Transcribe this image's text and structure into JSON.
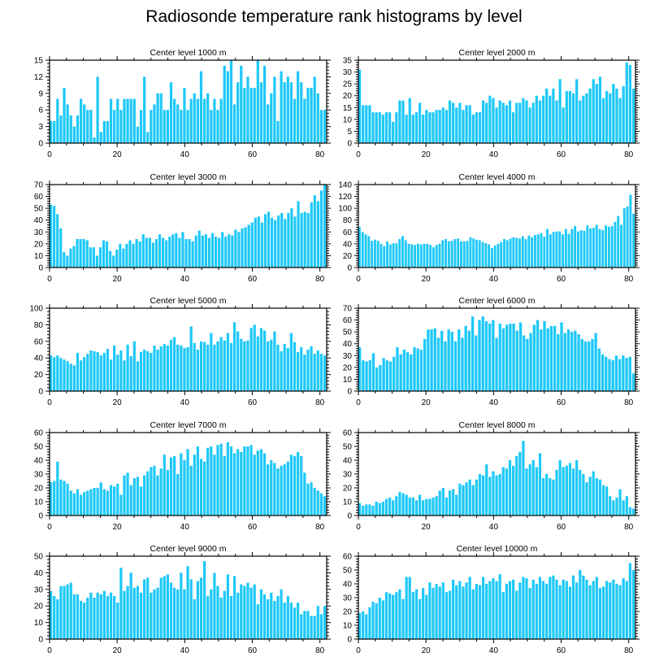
{
  "figure_title": "Radiosonde temperature rank histograms by level",
  "colors": {
    "bar": "#1ec8f8",
    "axis": "#000000"
  },
  "chart_data": [
    {
      "type": "bar",
      "title": "Center level 1000 m",
      "xlabel": "",
      "ylabel": "",
      "xlim": [
        0,
        82
      ],
      "ylim": [
        0,
        15
      ],
      "xticks": [
        0,
        20,
        40,
        60,
        80
      ],
      "yticks": [
        0,
        3,
        6,
        9,
        12,
        15
      ],
      "values": [
        4,
        4,
        8,
        5,
        10,
        7,
        5,
        3,
        5,
        8,
        7,
        6,
        6,
        1,
        12,
        2,
        4,
        4,
        8,
        6,
        8,
        6,
        8,
        8,
        8,
        8,
        3,
        6,
        12,
        2,
        6,
        7,
        9,
        9,
        6,
        6,
        11,
        8,
        7,
        6,
        10,
        6,
        8,
        9,
        8,
        13,
        8,
        9,
        6,
        8,
        6,
        8,
        14,
        13,
        15,
        7,
        11,
        14,
        10,
        12,
        10,
        10,
        15,
        11,
        14,
        7,
        9,
        12,
        4,
        13,
        11,
        12,
        11,
        8,
        13,
        11,
        8,
        10,
        10,
        12,
        9,
        6,
        6
      ],
      "ticks_right": true
    },
    {
      "type": "bar",
      "title": "Center level 2000 m",
      "xlabel": "",
      "ylabel": "",
      "xlim": [
        0,
        82
      ],
      "ylim": [
        0,
        35
      ],
      "xticks": [
        0,
        20,
        40,
        60,
        80
      ],
      "yticks": [
        0,
        5,
        10,
        15,
        20,
        25,
        30,
        35
      ],
      "values": [
        31,
        16,
        16,
        16,
        13,
        13,
        13,
        12,
        13,
        13,
        9,
        13,
        18,
        18,
        12,
        19,
        12,
        13,
        17,
        12,
        14,
        13,
        13,
        14,
        14,
        15,
        14,
        18,
        17,
        15,
        17,
        14,
        16,
        16,
        12,
        13,
        13,
        18,
        17,
        20,
        19,
        15,
        18,
        17,
        16,
        18,
        13,
        17,
        17,
        19,
        18,
        15,
        17,
        20,
        18,
        20,
        23,
        20,
        23,
        18,
        27,
        15,
        22,
        22,
        21,
        27,
        18,
        20,
        21,
        23,
        27,
        25,
        28,
        19,
        22,
        21,
        25,
        23,
        19,
        24,
        34,
        33,
        23
      ],
      "ticks_right": true
    },
    {
      "type": "bar",
      "title": "Center level 3000 m",
      "xlabel": "",
      "ylabel": "",
      "xlim": [
        0,
        82
      ],
      "ylim": [
        0,
        70
      ],
      "xticks": [
        0,
        20,
        40,
        60,
        80
      ],
      "yticks": [
        0,
        10,
        20,
        30,
        40,
        50,
        60,
        70
      ],
      "values": [
        53,
        52,
        45,
        33,
        13,
        10,
        16,
        18,
        24,
        24,
        24,
        23,
        17,
        17,
        10,
        17,
        23,
        22,
        14,
        10,
        15,
        20,
        16,
        20,
        23,
        20,
        24,
        22,
        28,
        25,
        25,
        21,
        24,
        28,
        25,
        23,
        26,
        28,
        29,
        25,
        30,
        24,
        24,
        22,
        27,
        31,
        27,
        28,
        25,
        29,
        26,
        25,
        30,
        26,
        28,
        27,
        32,
        30,
        33,
        34,
        36,
        38,
        42,
        43,
        38,
        45,
        47,
        42,
        40,
        44,
        46,
        41,
        46,
        50,
        43,
        56,
        46,
        47,
        46,
        55,
        61,
        56,
        65,
        70
      ],
      "ticks_right": true
    },
    {
      "type": "bar",
      "title": "Center level 4000 m",
      "xlabel": "",
      "ylabel": "",
      "xlim": [
        0,
        82
      ],
      "ylim": [
        0,
        140
      ],
      "xticks": [
        0,
        20,
        40,
        60,
        80
      ],
      "yticks": [
        0,
        20,
        40,
        60,
        80,
        100,
        120,
        140
      ],
      "values": [
        68,
        60,
        56,
        53,
        45,
        47,
        45,
        40,
        36,
        44,
        39,
        41,
        41,
        48,
        53,
        46,
        40,
        39,
        38,
        40,
        39,
        40,
        40,
        38,
        34,
        38,
        40,
        46,
        48,
        44,
        45,
        48,
        49,
        44,
        44,
        45,
        51,
        49,
        47,
        46,
        43,
        41,
        39,
        33,
        37,
        40,
        43,
        48,
        46,
        49,
        51,
        50,
        49,
        53,
        48,
        54,
        51,
        55,
        56,
        58,
        52,
        65,
        56,
        60,
        61,
        61,
        56,
        65,
        57,
        65,
        70,
        61,
        63,
        62,
        71,
        66,
        67,
        72,
        65,
        63,
        71,
        69,
        70,
        77,
        87,
        72,
        100,
        103,
        123,
        91
      ],
      "ticks_right": true
    },
    {
      "type": "bar",
      "title": "Center level 5000 m",
      "xlabel": "",
      "ylabel": "",
      "xlim": [
        0,
        82
      ],
      "ylim": [
        0,
        100
      ],
      "xticks": [
        0,
        20,
        40,
        60,
        80
      ],
      "yticks": [
        0,
        20,
        40,
        60,
        80,
        100
      ],
      "values": [
        43,
        41,
        43,
        40,
        38,
        36,
        33,
        31,
        46,
        37,
        41,
        45,
        49,
        48,
        47,
        43,
        46,
        51,
        38,
        55,
        44,
        49,
        37,
        56,
        42,
        60,
        36,
        47,
        50,
        48,
        46,
        55,
        50,
        54,
        57,
        55,
        62,
        65,
        56,
        55,
        52,
        53,
        78,
        58,
        50,
        60,
        59,
        56,
        70,
        56,
        60,
        65,
        61,
        70,
        58,
        83,
        72,
        63,
        60,
        61,
        76,
        80,
        66,
        76,
        73,
        60,
        62,
        72,
        56,
        48,
        57,
        52,
        70,
        59,
        47,
        53,
        44,
        50,
        54,
        45,
        49,
        45,
        43
      ],
      "ticks_right": true
    },
    {
      "type": "bar",
      "title": "Center level 6000 m",
      "xlabel": "",
      "ylabel": "",
      "xlim": [
        0,
        82
      ],
      "ylim": [
        0,
        70
      ],
      "xticks": [
        0,
        20,
        40,
        60,
        80
      ],
      "yticks": [
        0,
        10,
        20,
        30,
        40,
        50,
        60,
        70
      ],
      "values": [
        37,
        26,
        25,
        26,
        32,
        20,
        22,
        28,
        26,
        25,
        29,
        37,
        31,
        35,
        33,
        31,
        37,
        36,
        35,
        44,
        52,
        52,
        53,
        45,
        51,
        42,
        52,
        50,
        42,
        52,
        45,
        55,
        51,
        63,
        47,
        60,
        63,
        59,
        57,
        60,
        45,
        57,
        53,
        56,
        57,
        57,
        51,
        58,
        47,
        44,
        49,
        56,
        60,
        52,
        59,
        53,
        55,
        55,
        48,
        58,
        49,
        52,
        50,
        51,
        48,
        44,
        42,
        42,
        44,
        49,
        36,
        31,
        29,
        27,
        26,
        30,
        27,
        30,
        28,
        29,
        15
      ],
      "ticks_right": true
    },
    {
      "type": "bar",
      "title": "Center level 7000 m",
      "xlabel": "",
      "ylabel": "",
      "xlim": [
        0,
        82
      ],
      "ylim": [
        0,
        60
      ],
      "xticks": [
        0,
        20,
        40,
        60,
        80
      ],
      "yticks": [
        0,
        10,
        20,
        30,
        40,
        50,
        60
      ],
      "values": [
        24,
        25,
        39,
        26,
        25,
        23,
        18,
        16,
        19,
        15,
        17,
        18,
        19,
        20,
        20,
        24,
        19,
        18,
        22,
        21,
        23,
        15,
        29,
        31,
        22,
        27,
        28,
        21,
        29,
        32,
        35,
        36,
        29,
        34,
        44,
        33,
        42,
        43,
        30,
        45,
        40,
        48,
        36,
        44,
        50,
        41,
        39,
        49,
        50,
        44,
        51,
        52,
        43,
        53,
        50,
        45,
        48,
        46,
        50,
        50,
        51,
        44,
        47,
        48,
        45,
        37,
        40,
        38,
        34,
        36,
        37,
        39,
        44,
        43,
        46,
        43,
        31,
        23,
        24,
        20,
        18,
        16,
        14
      ],
      "ticks_right": true
    },
    {
      "type": "bar",
      "title": "Center level 8000 m",
      "xlabel": "",
      "ylabel": "",
      "xlim": [
        0,
        82
      ],
      "ylim": [
        0,
        60
      ],
      "xticks": [
        0,
        20,
        40,
        60,
        80
      ],
      "yticks": [
        0,
        10,
        20,
        30,
        40,
        50,
        60
      ],
      "values": [
        9,
        7,
        8,
        8,
        7,
        10,
        9,
        10,
        12,
        13,
        11,
        14,
        17,
        16,
        15,
        13,
        13,
        11,
        15,
        11,
        12,
        12,
        13,
        14,
        18,
        20,
        13,
        18,
        19,
        15,
        23,
        22,
        24,
        26,
        22,
        26,
        30,
        29,
        37,
        28,
        32,
        29,
        30,
        35,
        34,
        40,
        36,
        43,
        46,
        54,
        34,
        37,
        40,
        35,
        45,
        27,
        30,
        27,
        26,
        33,
        40,
        35,
        36,
        38,
        34,
        40,
        33,
        30,
        24,
        28,
        32,
        27,
        26,
        22,
        21,
        14,
        11,
        13,
        19,
        11,
        14,
        6,
        5
      ],
      "ticks_right": true
    },
    {
      "type": "bar",
      "title": "Center level 9000 m",
      "xlabel": "",
      "ylabel": "",
      "xlim": [
        0,
        82
      ],
      "ylim": [
        0,
        50
      ],
      "xticks": [
        0,
        20,
        40,
        60,
        80
      ],
      "yticks": [
        0,
        10,
        20,
        30,
        40,
        50
      ],
      "values": [
        29,
        26,
        24,
        32,
        32,
        33,
        34,
        27,
        27,
        23,
        22,
        25,
        28,
        25,
        28,
        27,
        29,
        26,
        28,
        26,
        22,
        43,
        29,
        32,
        40,
        31,
        32,
        28,
        36,
        37,
        28,
        30,
        31,
        37,
        38,
        39,
        34,
        31,
        30,
        40,
        30,
        44,
        36,
        24,
        35,
        37,
        47,
        26,
        30,
        40,
        32,
        25,
        29,
        39,
        26,
        38,
        28,
        33,
        32,
        34,
        31,
        33,
        21,
        30,
        27,
        24,
        28,
        23,
        26,
        30,
        22,
        26,
        22,
        19,
        22,
        15,
        17,
        17,
        14,
        14,
        20,
        15,
        20
      ],
      "ticks_right": true
    },
    {
      "type": "bar",
      "title": "Center level 10000 m",
      "xlabel": "",
      "ylabel": "",
      "xlim": [
        0,
        82
      ],
      "ylim": [
        0,
        60
      ],
      "xticks": [
        0,
        20,
        40,
        60,
        80
      ],
      "yticks": [
        0,
        10,
        20,
        30,
        40,
        50,
        60
      ],
      "values": [
        19,
        20,
        18,
        23,
        27,
        26,
        30,
        28,
        34,
        33,
        32,
        34,
        36,
        29,
        45,
        45,
        34,
        36,
        29,
        37,
        32,
        41,
        37,
        40,
        38,
        41,
        34,
        35,
        43,
        39,
        42,
        38,
        41,
        45,
        36,
        40,
        39,
        45,
        40,
        42,
        44,
        42,
        47,
        34,
        40,
        42,
        43,
        35,
        41,
        45,
        44,
        37,
        43,
        40,
        45,
        42,
        40,
        45,
        46,
        43,
        39,
        43,
        42,
        38,
        46,
        41,
        50,
        46,
        43,
        39,
        42,
        45,
        37,
        38,
        42,
        41,
        43,
        40,
        39,
        44,
        42,
        55,
        50
      ],
      "ticks_right": true
    }
  ]
}
